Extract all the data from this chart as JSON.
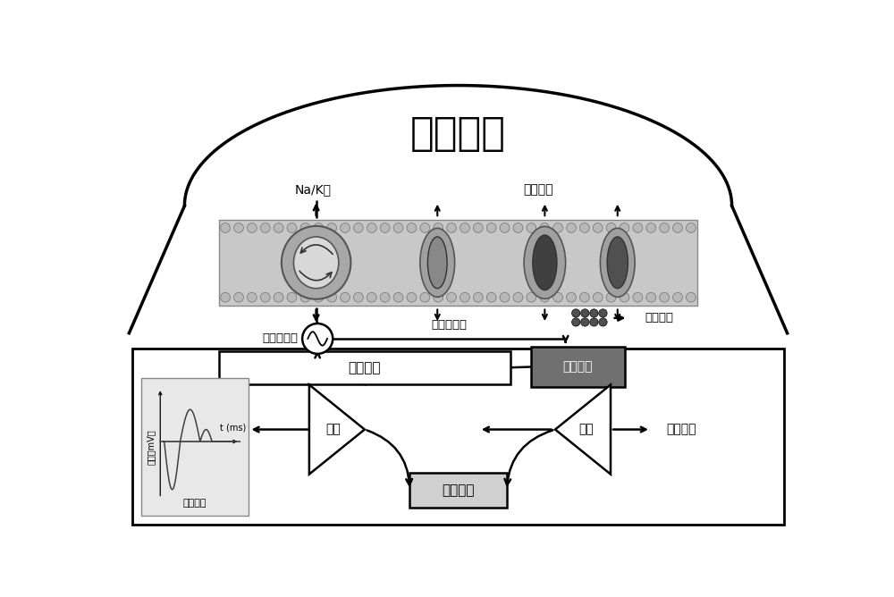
{
  "title": "神经细胞",
  "bg_color": "#ffffff",
  "label_nakpump": "Na/K泵",
  "label_ionchannel": "离子通道",
  "label_neuro_signal": "神经电信号",
  "label_interference": "电信号干扰",
  "label_ion_accum": "离子积累",
  "label_elec_electrode": "电学电极",
  "label_chem_electrode": "化学电极",
  "label_readout": "读出",
  "label_cancel": "干扰抵消",
  "label_ion_conc": "离子浓度",
  "label_action_pot": "动作电位",
  "label_voltage": "电压（mV）",
  "label_time": "t (ms)"
}
